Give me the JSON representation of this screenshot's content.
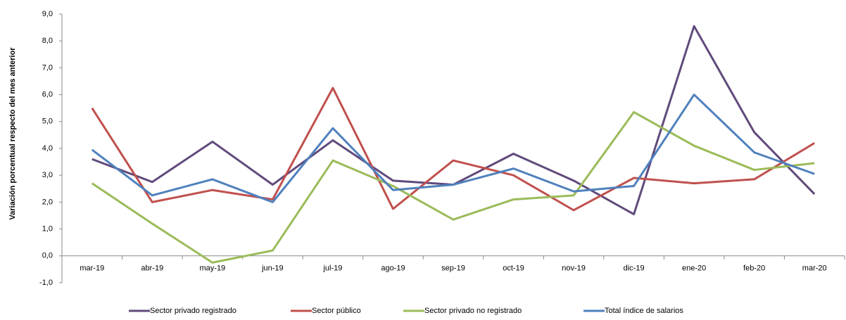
{
  "chart_data": {
    "type": "line",
    "y_label": "Variación porcentual respecto del mes anterior",
    "categories": [
      "mar-19",
      "abr-19",
      "may-19",
      "jun-19",
      "jul-19",
      "ago-19",
      "sep-19",
      "oct-19",
      "nov-19",
      "dic-19",
      "ene-20",
      "feb-20",
      "mar-20"
    ],
    "series": [
      {
        "name": "Sector privado registrado",
        "color": "#604a7b",
        "values": [
          3.6,
          2.75,
          4.25,
          2.65,
          4.3,
          2.8,
          2.65,
          3.8,
          2.8,
          1.55,
          8.55,
          4.6,
          2.3
        ]
      },
      {
        "name": "Sector público",
        "color": "#c0504d",
        "values": [
          5.5,
          2.0,
          2.45,
          2.1,
          6.25,
          1.75,
          3.55,
          3.0,
          1.7,
          2.9,
          2.7,
          2.85,
          4.2
        ]
      },
      {
        "name": "Sector privado no registrado",
        "color": "#9bbb59",
        "values": [
          2.7,
          1.2,
          -0.25,
          0.2,
          3.55,
          2.6,
          1.35,
          2.1,
          2.25,
          5.35,
          4.1,
          3.2,
          3.45
        ]
      },
      {
        "name": "Total índice de salarios",
        "color": "#4f81bd",
        "values": [
          3.95,
          2.25,
          2.85,
          2.0,
          4.75,
          2.45,
          2.65,
          3.25,
          2.4,
          2.6,
          6.0,
          3.85,
          3.05
        ]
      }
    ],
    "ylim": [
      -1,
      9
    ],
    "yticks": [
      {
        "value": -1,
        "label": "-1,0"
      },
      {
        "value": 0,
        "label": "0,0"
      },
      {
        "value": 1,
        "label": "1,0"
      },
      {
        "value": 2,
        "label": "2,0"
      },
      {
        "value": 3,
        "label": "3,0"
      },
      {
        "value": 4,
        "label": "4,0"
      },
      {
        "value": 5,
        "label": "5,0"
      },
      {
        "value": 6,
        "label": "6,0"
      },
      {
        "value": 7,
        "label": "7,0"
      },
      {
        "value": 8,
        "label": "8,0"
      },
      {
        "value": 9,
        "label": "9,0"
      }
    ],
    "legend": "bottom"
  }
}
